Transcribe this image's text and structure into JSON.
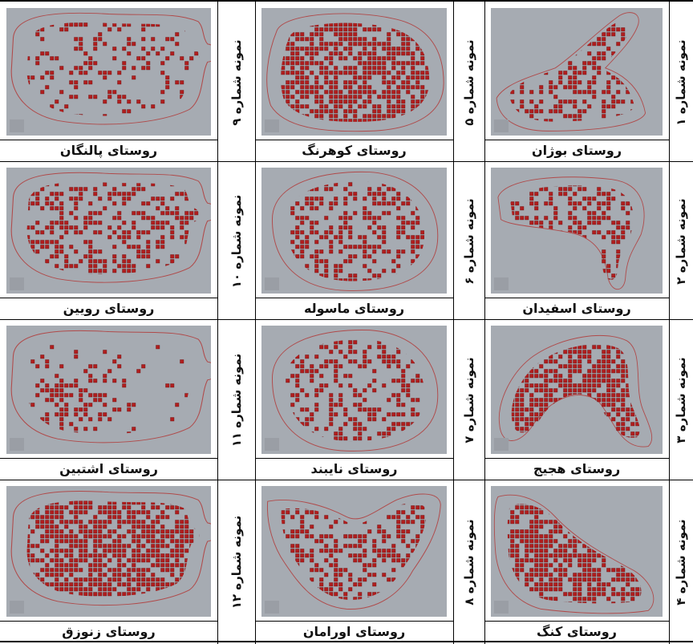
{
  "label_prefix": "نمونه شماره",
  "rows": [
    [
      {
        "number": "۹",
        "caption": "روستای پالنگان",
        "shape": "blob-wide",
        "density": "sparse"
      },
      {
        "number": "۵",
        "caption": "روستای کوهرنگ",
        "shape": "rounded-square",
        "density": "dense"
      },
      {
        "number": "۱",
        "caption": "روستای بوژان",
        "shape": "diagonal-band",
        "density": "medium"
      }
    ],
    [
      {
        "number": "۱۰",
        "caption": "روستای رویین",
        "shape": "blob-wide",
        "density": "medium"
      },
      {
        "number": "۶",
        "caption": "روستای ماسوله",
        "shape": "oval",
        "density": "medium"
      },
      {
        "number": "۲",
        "caption": "روستای اسفیدان",
        "shape": "l-shape",
        "density": "medium"
      }
    ],
    [
      {
        "number": "۱۱",
        "caption": "روستای اشتبین",
        "shape": "blob-wide",
        "density": "cluster-left"
      },
      {
        "number": "۷",
        "caption": "روستای نایبند",
        "shape": "oval",
        "density": "medium"
      },
      {
        "number": "۳",
        "caption": "روستای هجیج",
        "shape": "arch",
        "density": "dense"
      }
    ],
    [
      {
        "number": "۱۲",
        "caption": "روستای زنوزق",
        "shape": "blob-wide",
        "density": "dense"
      },
      {
        "number": "۸",
        "caption": "روستای اورامان",
        "shape": "valley",
        "density": "medium"
      },
      {
        "number": "۴",
        "caption": "روستای کنگ",
        "shape": "diagonal-down",
        "density": "dense"
      }
    ]
  ],
  "colors": {
    "panel": "#a6abb2",
    "building": "#b01e1e",
    "outline": "#b04a4a"
  }
}
